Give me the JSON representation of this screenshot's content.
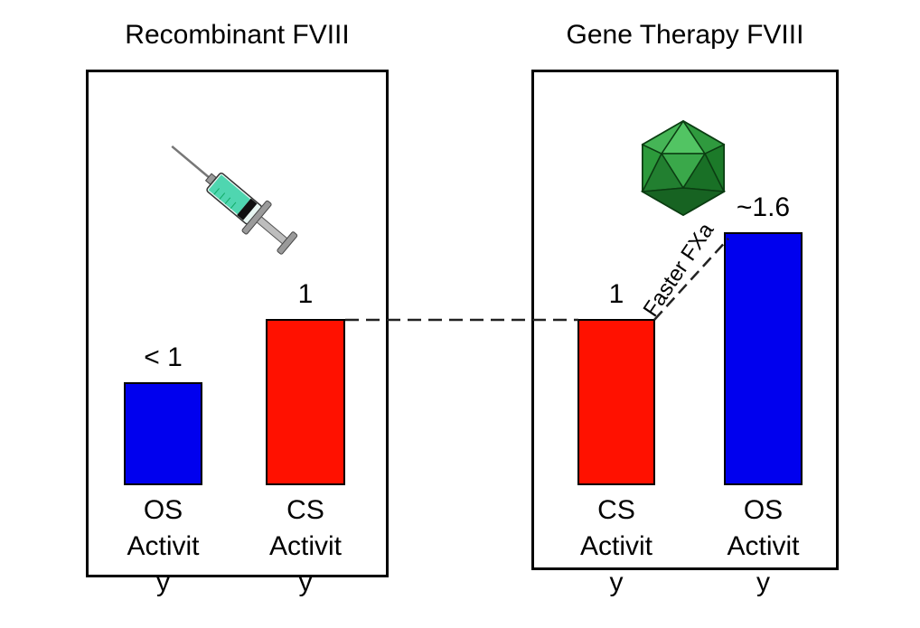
{
  "panels": {
    "left": {
      "title": "Recombinant FVIII",
      "icon": "syringe-icon",
      "bars": [
        {
          "label_line1": "OS",
          "label_line2": "Activit",
          "label_line3": "y",
          "value_label": "< 1",
          "value": 0.62,
          "color": "#0000ee"
        },
        {
          "label_line1": "CS",
          "label_line2": "Activit",
          "label_line3": "y",
          "value_label": "1",
          "value": 1.0,
          "color": "#ff1100"
        }
      ]
    },
    "right": {
      "title": "Gene Therapy FVIII",
      "icon": "icosahedron-virus-icon",
      "bars": [
        {
          "label_line1": "CS",
          "label_line2": "Activit",
          "label_line3": "y",
          "value_label": "1",
          "value": 1.0,
          "color": "#ff1100"
        },
        {
          "label_line1": "OS",
          "label_line2": "Activit",
          "label_line3": "y",
          "value_label": "~1.6",
          "value": 1.52,
          "color": "#0000ee"
        }
      ]
    }
  },
  "annotation": {
    "text": "Faster FXa"
  },
  "colors": {
    "os": "#0000ee",
    "cs": "#ff1100",
    "virus": "#1f8a2e",
    "syringe_fluid": "#4fd6b0"
  }
}
